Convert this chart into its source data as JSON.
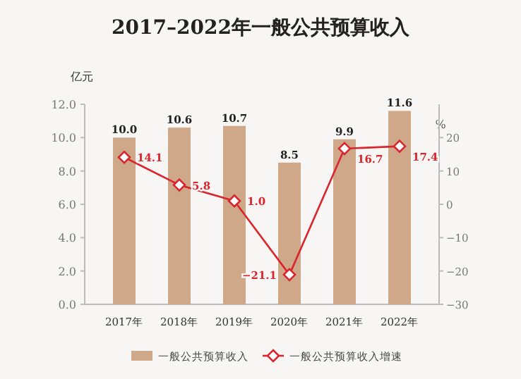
{
  "chart_data": {
    "type": "bar",
    "title": "2017–2022年一般公共预算收入",
    "ylabel": "亿元",
    "y2label": "%",
    "categories": [
      "2017年",
      "2018年",
      "2019年",
      "2020年",
      "2021年",
      "2022年"
    ],
    "series": [
      {
        "name": "一般公共预算收入",
        "color": "#cfa889",
        "values": [
          10.0,
          10.6,
          10.7,
          8.5,
          9.9,
          11.6
        ],
        "value_labels": [
          "10.0",
          "10.6",
          "10.7",
          "8.5",
          "9.9",
          "11.6"
        ]
      },
      {
        "name": "一般公共预算收入增速",
        "type": "line",
        "axis": "y2",
        "color": "#d9262e",
        "marker": "diamond",
        "values": [
          14.1,
          5.8,
          1.0,
          -21.1,
          16.7,
          17.4
        ],
        "value_labels": [
          "14.1",
          "5.8",
          "1.0",
          "−21.1",
          "16.7",
          "17.4"
        ]
      }
    ],
    "ylim": [
      0,
      12
    ],
    "yticks": [
      {
        "value": 0,
        "label": "0.0"
      },
      {
        "value": 2,
        "label": "2.0"
      },
      {
        "value": 4,
        "label": "4.0"
      },
      {
        "value": 6,
        "label": "6.0"
      },
      {
        "value": 8,
        "label": "8.0"
      },
      {
        "value": 10,
        "label": "10.0"
      },
      {
        "value": 12,
        "label": "12.0"
      }
    ],
    "y2lim": [
      -30,
      30
    ],
    "y2ticks": [
      -30,
      -20,
      -10,
      0,
      10,
      20
    ],
    "legend": "bottom",
    "grid": false
  }
}
